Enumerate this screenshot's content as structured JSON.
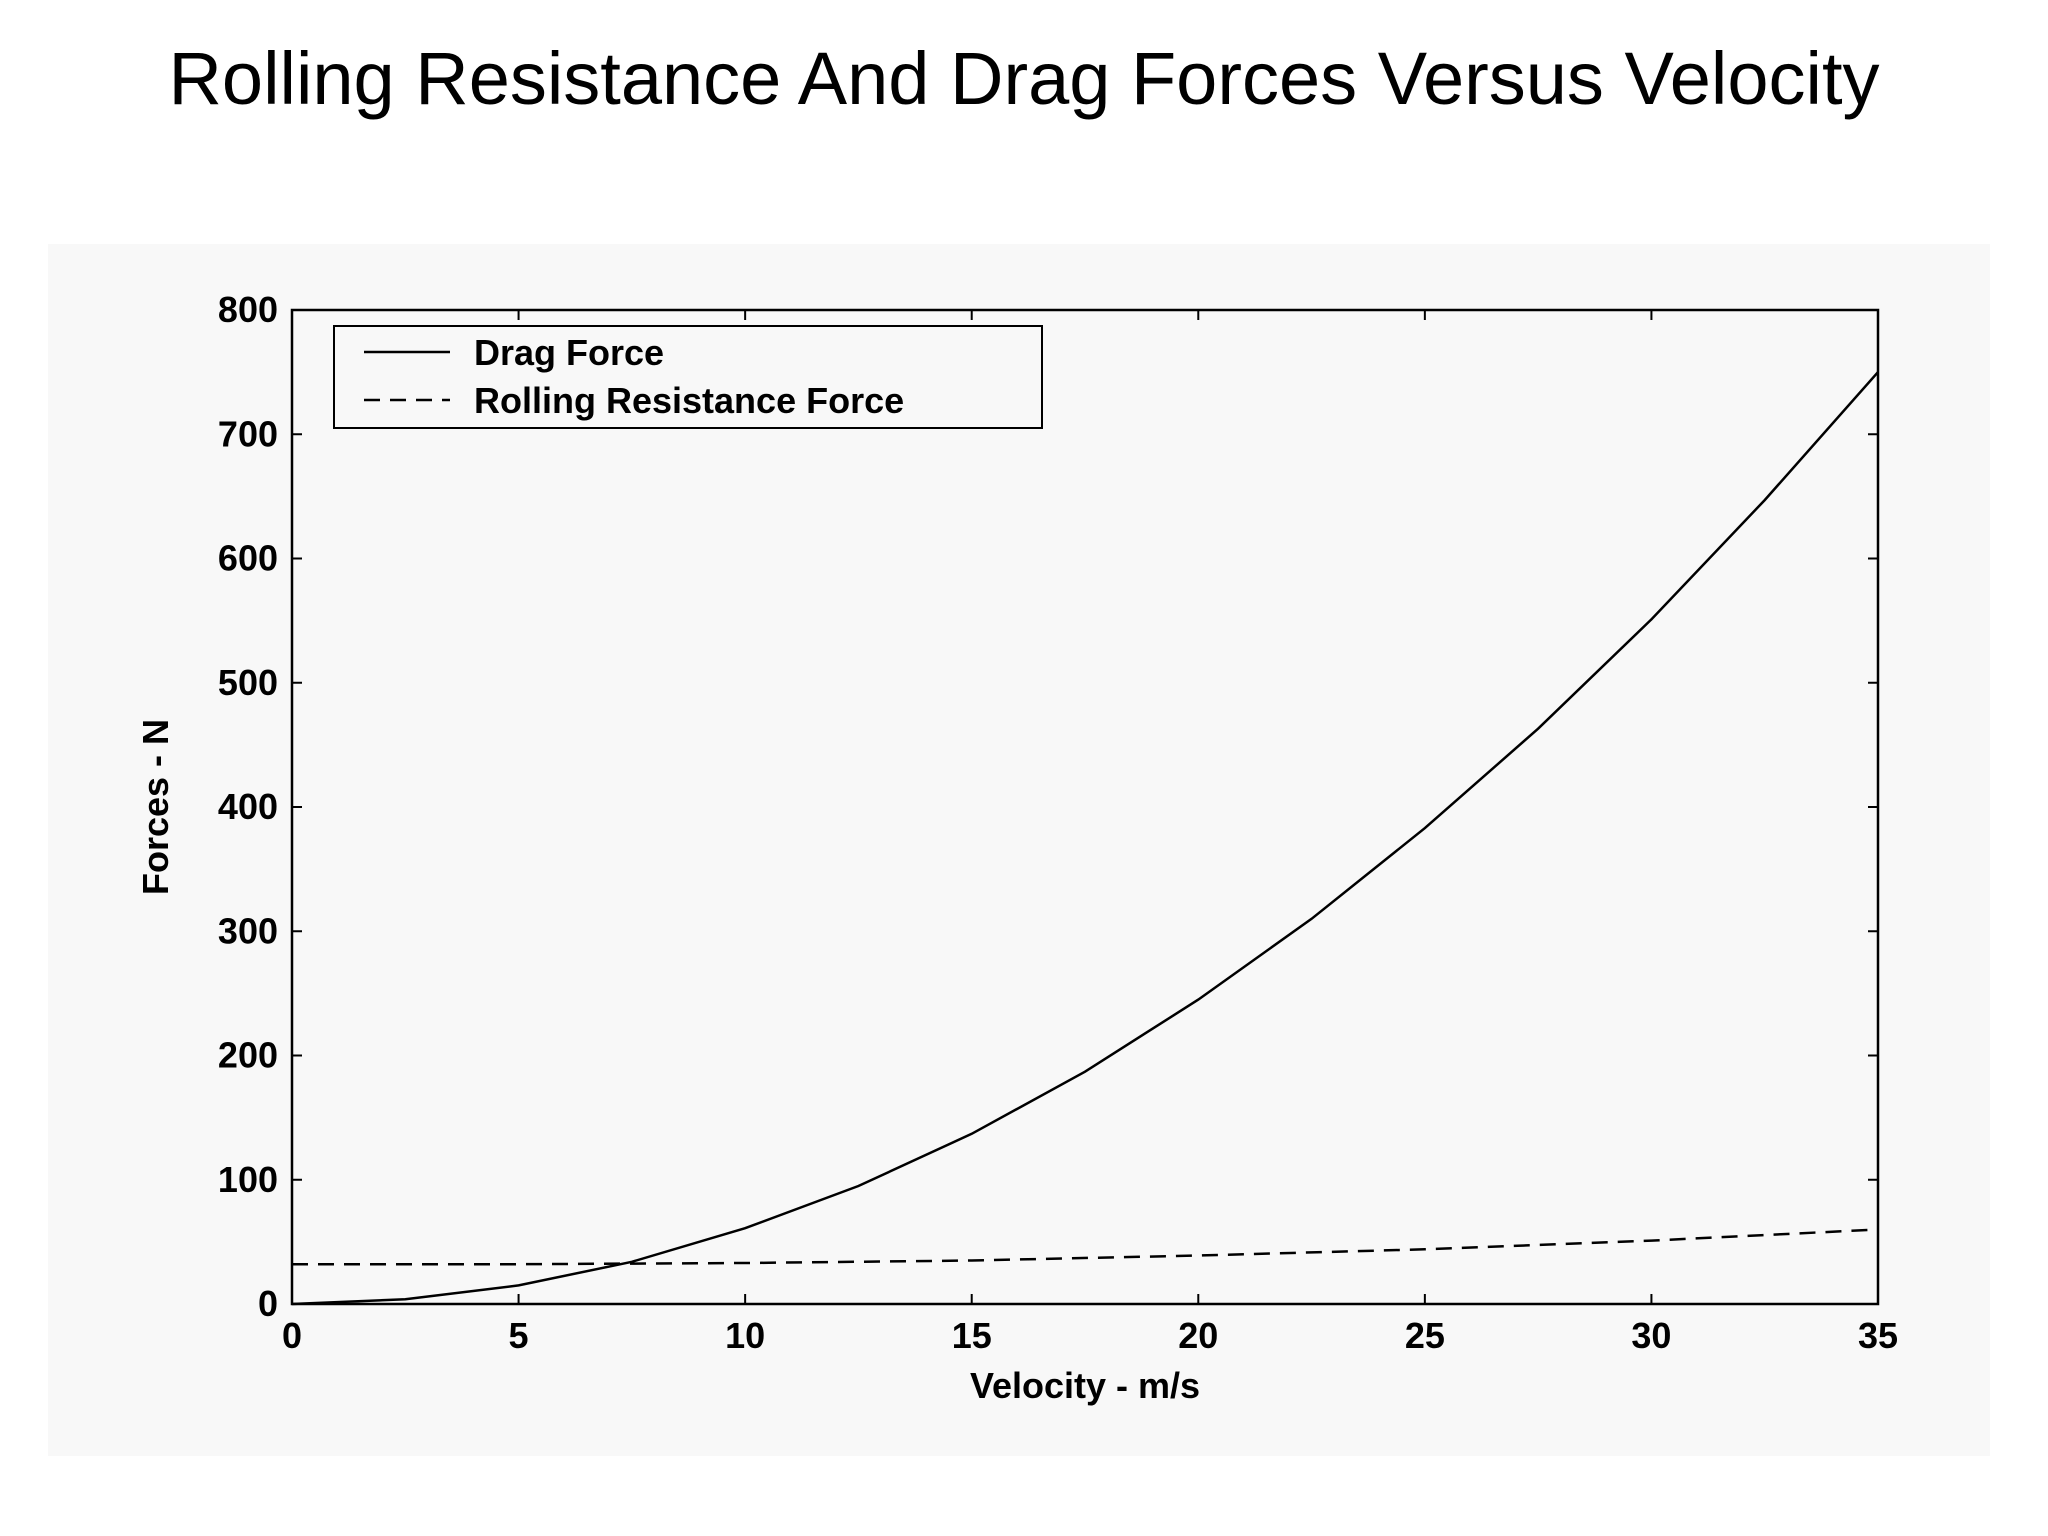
{
  "slide": {
    "title": "Rolling Resistance And Drag Forces Versus Velocity"
  },
  "chart_data": {
    "type": "line",
    "title": "",
    "xlabel": "Velocity - m/s",
    "ylabel": "Forces - N",
    "xlim": [
      0,
      35
    ],
    "ylim": [
      0,
      800
    ],
    "xticks": [
      0,
      5,
      10,
      15,
      20,
      25,
      30,
      35
    ],
    "yticks": [
      0,
      100,
      200,
      300,
      400,
      500,
      600,
      700,
      800
    ],
    "grid": false,
    "legend_position": "top-left",
    "series": [
      {
        "name": "Drag Force",
        "style": "solid",
        "color": "#000000",
        "x": [
          0,
          2.5,
          5,
          7.5,
          10,
          12.5,
          15,
          17.5,
          20,
          22.5,
          25,
          27.5,
          30,
          32.5,
          35
        ],
        "y": [
          0,
          3.8,
          15,
          34,
          61,
          95,
          137,
          187,
          245,
          310,
          383,
          463,
          551,
          647,
          750
        ]
      },
      {
        "name": "Rolling Resistance Force",
        "style": "dashed",
        "color": "#000000",
        "x": [
          0,
          5,
          10,
          15,
          20,
          25,
          30,
          35
        ],
        "y": [
          32,
          32,
          33,
          35,
          39,
          44,
          51,
          60
        ]
      }
    ]
  }
}
